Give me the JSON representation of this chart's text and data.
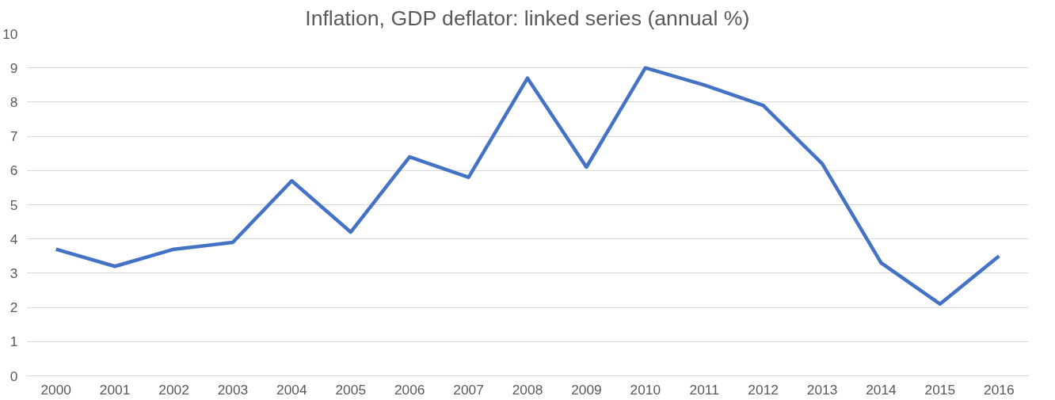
{
  "chart_data": {
    "type": "line",
    "title": "Inflation, GDP deflator: linked series (annual %)",
    "categories": [
      "2000",
      "2001",
      "2002",
      "2003",
      "2004",
      "2005",
      "2006",
      "2007",
      "2008",
      "2009",
      "2010",
      "2011",
      "2012",
      "2013",
      "2014",
      "2015",
      "2016"
    ],
    "series": [
      {
        "color": "#4472c4",
        "values": [
          3.7,
          3.2,
          3.7,
          3.9,
          5.7,
          4.2,
          6.4,
          5.8,
          8.7,
          6.1,
          9.0,
          8.5,
          7.9,
          6.2,
          3.3,
          2.1,
          3.5
        ]
      }
    ],
    "ylim": [
      0,
      10
    ],
    "yticks": [
      0,
      1,
      2,
      3,
      4,
      5,
      6,
      7,
      8,
      9,
      10
    ],
    "grid": "y",
    "marker": "none",
    "line_style": "solid"
  }
}
